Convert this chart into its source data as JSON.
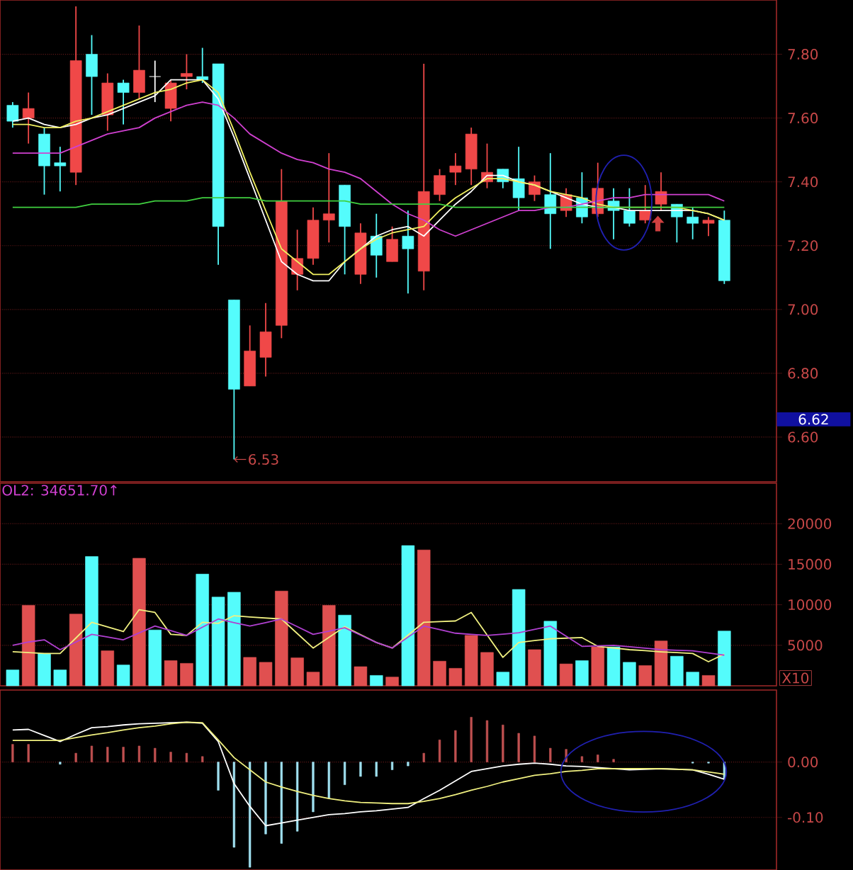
{
  "chart_data": [
    {
      "type": "candlestick",
      "categories": [
        null,
        null,
        null,
        null,
        null,
        null,
        null,
        null,
        null,
        null,
        null,
        null,
        null,
        null,
        null,
        null,
        null,
        null,
        null,
        null,
        null,
        null,
        null,
        null,
        null,
        null,
        null,
        null,
        null,
        null,
        null,
        null,
        null,
        null,
        null,
        null,
        null,
        null,
        null,
        null,
        null,
        null,
        null,
        null,
        null,
        null
      ],
      "ohlc": [
        [
          7.64,
          7.65,
          7.57,
          7.59
        ],
        [
          7.6,
          7.68,
          7.52,
          7.63
        ],
        [
          7.55,
          7.57,
          7.36,
          7.45
        ],
        [
          7.46,
          7.51,
          7.37,
          7.45
        ],
        [
          7.43,
          7.95,
          7.39,
          7.78
        ],
        [
          7.8,
          7.86,
          7.61,
          7.73
        ],
        [
          7.61,
          7.74,
          7.56,
          7.71
        ],
        [
          7.71,
          7.72,
          7.58,
          7.68
        ],
        [
          7.68,
          7.89,
          7.66,
          7.75
        ],
        [
          7.73,
          7.78,
          7.65,
          7.73
        ],
        [
          7.63,
          7.72,
          7.59,
          7.71
        ],
        [
          7.73,
          7.8,
          7.69,
          7.74
        ],
        [
          7.73,
          7.82,
          7.71,
          7.72
        ],
        [
          7.77,
          7.77,
          7.14,
          7.26
        ],
        [
          7.03,
          7.03,
          6.53,
          6.75
        ],
        [
          6.76,
          6.95,
          6.76,
          6.87
        ],
        [
          6.85,
          7.02,
          6.79,
          6.93
        ],
        [
          6.95,
          7.44,
          6.91,
          7.34
        ],
        [
          7.11,
          7.25,
          7.06,
          7.16
        ],
        [
          7.16,
          7.32,
          7.14,
          7.28
        ],
        [
          7.28,
          7.49,
          7.21,
          7.3
        ],
        [
          7.39,
          7.39,
          7.11,
          7.26
        ],
        [
          7.11,
          7.27,
          7.08,
          7.24
        ],
        [
          7.23,
          7.3,
          7.1,
          7.17
        ],
        [
          7.15,
          7.26,
          7.15,
          7.22
        ],
        [
          7.23,
          7.31,
          7.05,
          7.19
        ],
        [
          7.12,
          7.77,
          7.06,
          7.37
        ],
        [
          7.36,
          7.44,
          7.34,
          7.42
        ],
        [
          7.43,
          7.49,
          7.39,
          7.45
        ],
        [
          7.44,
          7.57,
          7.39,
          7.55
        ],
        [
          7.4,
          7.52,
          7.38,
          7.43
        ],
        [
          7.44,
          7.44,
          7.38,
          7.4
        ],
        [
          7.41,
          7.51,
          7.31,
          7.35
        ],
        [
          7.36,
          7.42,
          7.34,
          7.4
        ],
        [
          7.36,
          7.49,
          7.19,
          7.3
        ],
        [
          7.31,
          7.38,
          7.29,
          7.36
        ],
        [
          7.35,
          7.43,
          7.27,
          7.29
        ],
        [
          7.3,
          7.46,
          7.29,
          7.38
        ],
        [
          7.34,
          7.38,
          7.22,
          7.31
        ],
        [
          7.31,
          7.38,
          7.26,
          7.27
        ],
        [
          7.28,
          7.39,
          7.27,
          7.31
        ],
        [
          7.33,
          7.43,
          7.31,
          7.37
        ],
        [
          7.33,
          7.33,
          7.21,
          7.29
        ],
        [
          7.29,
          7.32,
          7.22,
          7.27
        ],
        [
          7.27,
          7.29,
          7.23,
          7.28
        ],
        [
          7.28,
          7.31,
          7.08,
          7.09
        ]
      ],
      "colors": [
        "#54fcfc",
        "#f04848",
        "#54fcfc",
        "#54fcfc",
        "#f04848",
        "#54fcfc",
        "#f04848",
        "#54fcfc",
        "#f04848",
        "#ffffff",
        "#f04848",
        "#f04848",
        "#54fcfc",
        "#54fcfc",
        "#54fcfc",
        "#f04848",
        "#f04848",
        "#f04848",
        "#f04848",
        "#f04848",
        "#f04848",
        "#54fcfc",
        "#f04848",
        "#54fcfc",
        "#f04848",
        "#54fcfc",
        "#f04848",
        "#f04848",
        "#f04848",
        "#f04848",
        "#f04848",
        "#54fcfc",
        "#54fcfc",
        "#f04848",
        "#54fcfc",
        "#f04848",
        "#54fcfc",
        "#f04848",
        "#54fcfc",
        "#54fcfc",
        "#f04848",
        "#f04848",
        "#54fcfc",
        "#54fcfc",
        "#f04848",
        "#54fcfc"
      ],
      "series": [
        {
          "type": "line",
          "color": "#ffffff",
          "values": [
            7.59,
            7.6,
            7.58,
            7.57,
            7.58,
            7.6,
            7.61,
            7.63,
            7.65,
            7.67,
            7.72,
            7.72,
            7.72,
            7.66,
            7.54,
            7.41,
            7.28,
            7.15,
            7.11,
            7.09,
            7.09,
            7.15,
            7.19,
            7.23,
            7.25,
            7.26,
            7.23,
            7.28,
            7.33,
            7.37,
            7.42,
            7.42,
            7.4,
            7.39,
            7.37,
            7.35,
            7.33,
            7.32,
            7.32,
            7.31,
            7.31,
            7.31,
            7.31,
            7.31,
            7.3,
            7.28
          ]
        },
        {
          "type": "line",
          "color": "#f0f060",
          "values": [
            7.58,
            7.58,
            7.57,
            7.57,
            7.59,
            7.6,
            7.62,
            7.64,
            7.66,
            7.68,
            7.69,
            7.71,
            7.72,
            7.68,
            7.56,
            7.43,
            7.31,
            7.19,
            7.15,
            7.11,
            7.11,
            7.15,
            7.19,
            7.22,
            7.24,
            7.25,
            7.26,
            7.31,
            7.35,
            7.38,
            7.41,
            7.41,
            7.4,
            7.39,
            7.37,
            7.36,
            7.35,
            7.33,
            7.32,
            7.32,
            7.32,
            7.32,
            7.32,
            7.31,
            7.3,
            7.28
          ]
        },
        {
          "type": "line",
          "color": "#d040d0",
          "values": [
            7.49,
            7.49,
            7.49,
            7.49,
            7.51,
            7.53,
            7.55,
            7.56,
            7.57,
            7.6,
            7.62,
            7.64,
            7.65,
            7.64,
            7.6,
            7.55,
            7.52,
            7.49,
            7.47,
            7.46,
            7.44,
            7.43,
            7.41,
            7.37,
            7.33,
            7.3,
            7.28,
            7.25,
            7.23,
            7.25,
            7.27,
            7.29,
            7.31,
            7.31,
            7.32,
            7.32,
            7.33,
            7.34,
            7.35,
            7.35,
            7.36,
            7.36,
            7.36,
            7.36,
            7.36,
            7.34
          ]
        },
        {
          "type": "line",
          "color": "#40d040",
          "values": [
            7.32,
            7.32,
            7.32,
            7.32,
            7.32,
            7.33,
            7.33,
            7.33,
            7.33,
            7.34,
            7.34,
            7.34,
            7.35,
            7.35,
            7.35,
            7.35,
            7.34,
            7.34,
            7.34,
            7.34,
            7.34,
            7.34,
            7.33,
            7.33,
            7.33,
            7.33,
            7.33,
            7.33,
            7.32,
            7.32,
            7.32,
            7.32,
            7.32,
            7.32,
            7.32,
            7.32,
            7.32,
            7.32,
            7.32,
            7.32,
            7.32,
            7.32,
            7.32,
            7.32,
            7.32,
            7.32
          ]
        }
      ],
      "ylim": [
        6.46,
        7.97
      ],
      "yticks": [
        {
          "value": 6.6,
          "label": "6.60"
        },
        {
          "value": 6.8,
          "label": "6.80"
        },
        {
          "value": 7.0,
          "label": "7.00"
        },
        {
          "value": 7.2,
          "label": "7.20"
        },
        {
          "value": 7.4,
          "label": "7.40"
        },
        {
          "value": 7.6,
          "label": "7.60"
        },
        {
          "value": 7.8,
          "label": "7.80"
        }
      ],
      "annotations": [
        "6.53",
        "6.62"
      ],
      "grid": "y",
      "tick_labels": "y"
    },
    {
      "type": "bar",
      "categories": [
        null,
        null,
        null,
        null,
        null,
        null,
        null,
        null,
        null,
        null,
        null,
        null,
        null,
        null,
        null,
        null,
        null,
        null,
        null,
        null,
        null,
        null,
        null,
        null,
        null,
        null,
        null,
        null,
        null,
        null,
        null,
        null,
        null,
        null,
        null,
        null,
        null,
        null,
        null,
        null,
        null,
        null,
        null,
        null,
        null,
        null
      ],
      "series": [
        {
          "type": "bar",
          "values": [
            1960,
            9930,
            3990,
            1960,
            8850,
            15950,
            4320,
            2570,
            15740,
            6890,
            3110,
            2770,
            13780,
            10950,
            11550,
            3510,
            2900,
            11690,
            3450,
            1690,
            9930,
            8720,
            2360,
            1280,
            1080,
            17300,
            16760,
            3040,
            2160,
            6220,
            4120,
            1690,
            11890,
            4460,
            7970,
            2700,
            3110,
            4800,
            4800,
            2900,
            2500,
            5540,
            3650,
            1690,
            1280,
            6760
          ],
          "colors": [
            "#54fcfc",
            "#e05050",
            "#54fcfc",
            "#54fcfc",
            "#e05050",
            "#54fcfc",
            "#e05050",
            "#54fcfc",
            "#e05050",
            "#54fcfc",
            "#e05050",
            "#e05050",
            "#54fcfc",
            "#54fcfc",
            "#54fcfc",
            "#e05050",
            "#e05050",
            "#e05050",
            "#e05050",
            "#e05050",
            "#e05050",
            "#54fcfc",
            "#e05050",
            "#54fcfc",
            "#e05050",
            "#54fcfc",
            "#e05050",
            "#e05050",
            "#e05050",
            "#e05050",
            "#e05050",
            "#54fcfc",
            "#54fcfc",
            "#e05050",
            "#54fcfc",
            "#e05050",
            "#54fcfc",
            "#e05050",
            "#54fcfc",
            "#54fcfc",
            "#e05050",
            "#e05050",
            "#54fcfc",
            "#54fcfc",
            "#e05050",
            "#54fcfc"
          ]
        },
        {
          "type": "line",
          "color": "#f0f080",
          "values": [
            4200,
            4100,
            3990,
            3990,
            5900,
            7840,
            7260,
            6690,
            9390,
            9050,
            6350,
            6220,
            7840,
            7700,
            8650,
            8500,
            8370,
            8240,
            6450,
            4660,
            5980,
            7300,
            6320,
            5340,
            4660,
            6250,
            7840,
            7920,
            8000,
            9050,
            6280,
            3510,
            5340,
            5580,
            5810,
            5880,
            5950,
            4870,
            4670,
            4460,
            4330,
            4190,
            4090,
            3990,
            2970,
            3920
          ]
        },
        {
          "type": "line",
          "color": "#b040d0",
          "values": [
            5000,
            5400,
            5680,
            4460,
            5400,
            6350,
            6020,
            5680,
            6530,
            7370,
            6800,
            6220,
            7230,
            8240,
            7800,
            7370,
            7800,
            8240,
            7300,
            6350,
            6750,
            7160,
            6250,
            5340,
            4660,
            6000,
            7370,
            6930,
            6490,
            6350,
            6220,
            6380,
            6550,
            6960,
            7370,
            6120,
            4870,
            4930,
            5000,
            4820,
            4640,
            4460,
            4390,
            4320,
            4050,
            3780
          ]
        }
      ],
      "ylim": [
        0,
        25000
      ],
      "yticks": [
        5000,
        10000,
        15000,
        20000
      ],
      "annotations": [
        "OL2: 34651.70↑",
        "X10"
      ],
      "grid": "y",
      "tick_labels": "y"
    },
    {
      "type": "bar",
      "categories": [
        null,
        null,
        null,
        null,
        null,
        null,
        null,
        null,
        null,
        null,
        null,
        null,
        null,
        null,
        null,
        null,
        null,
        null,
        null,
        null,
        null,
        null,
        null,
        null,
        null,
        null,
        null,
        null,
        null,
        null,
        null,
        null,
        null,
        null,
        null,
        null,
        null,
        null,
        null,
        null,
        null,
        null,
        null,
        null,
        null,
        null
      ],
      "series": [
        {
          "type": "bar",
          "values": [
            0.032,
            0.032,
            null,
            -0.004,
            0.016,
            0.029,
            0.027,
            0.027,
            0.029,
            0.025,
            0.018,
            0.016,
            0.01,
            -0.051,
            -0.154,
            -0.19,
            -0.13,
            -0.147,
            -0.125,
            -0.09,
            -0.066,
            -0.041,
            -0.026,
            -0.026,
            -0.014,
            -0.007,
            0.016,
            0.04,
            0.057,
            0.081,
            0.075,
            0.067,
            0.052,
            0.047,
            0.025,
            0.023,
            0.01,
            0.013,
            0.005,
            null,
            null,
            null,
            null,
            -0.002,
            -0.002,
            -0.031
          ],
          "colors": [
            "#c05050",
            "#c05050",
            "#c05050",
            "#a0e0f0",
            "#c05050",
            "#c05050",
            "#c05050",
            "#c05050",
            "#c05050",
            "#c05050",
            "#c05050",
            "#c05050",
            "#c05050",
            "#a0e0f0",
            "#a0e0f0",
            "#a0e0f0",
            "#a0e0f0",
            "#a0e0f0",
            "#a0e0f0",
            "#a0e0f0",
            "#a0e0f0",
            "#a0e0f0",
            "#a0e0f0",
            "#a0e0f0",
            "#a0e0f0",
            "#a0e0f0",
            "#c05050",
            "#c05050",
            "#c05050",
            "#c05050",
            "#c05050",
            "#c05050",
            "#c05050",
            "#c05050",
            "#c05050",
            "#c05050",
            "#c05050",
            "#c05050",
            "#c05050",
            "#c05050",
            "#c05050",
            "#c05050",
            "#c05050",
            "#a0e0f0",
            "#a0e0f0",
            "#a0e0f0"
          ]
        },
        {
          "type": "line",
          "color": "#ffffff",
          "values": [
            0.058,
            0.059,
            0.048,
            0.037,
            0.05,
            0.062,
            0.064,
            0.067,
            0.069,
            0.07,
            0.071,
            0.072,
            0.07,
            0.037,
            -0.039,
            -0.08,
            -0.115,
            -0.11,
            -0.105,
            -0.1,
            -0.095,
            -0.093,
            -0.09,
            -0.088,
            -0.085,
            -0.082,
            -0.066,
            -0.051,
            -0.034,
            -0.017,
            -0.012,
            -0.007,
            -0.004,
            -0.002,
            -0.004,
            -0.007,
            -0.008,
            -0.01,
            -0.012,
            -0.014,
            -0.013,
            -0.012,
            -0.013,
            -0.014,
            -0.022,
            -0.031
          ]
        },
        {
          "type": "line",
          "color": "#f0f080",
          "values": [
            0.039,
            0.039,
            0.039,
            0.039,
            0.044,
            0.049,
            0.053,
            0.058,
            0.062,
            0.065,
            0.069,
            0.072,
            0.071,
            0.04,
            0.008,
            -0.014,
            -0.036,
            -0.045,
            -0.053,
            -0.06,
            -0.066,
            -0.07,
            -0.073,
            -0.074,
            -0.075,
            -0.075,
            -0.071,
            -0.066,
            -0.059,
            -0.051,
            -0.044,
            -0.036,
            -0.03,
            -0.024,
            -0.021,
            -0.017,
            -0.015,
            -0.012,
            -0.012,
            -0.012,
            -0.012,
            -0.012,
            -0.013,
            -0.014,
            -0.018,
            -0.022
          ]
        }
      ],
      "ylim": [
        -0.195,
        0.13
      ],
      "yticks": [
        {
          "value": -0.1,
          "label": "-0.10"
        },
        {
          "value": 0,
          "label": "0.00"
        }
      ],
      "grid": "y",
      "tick_labels": "y"
    }
  ]
}
